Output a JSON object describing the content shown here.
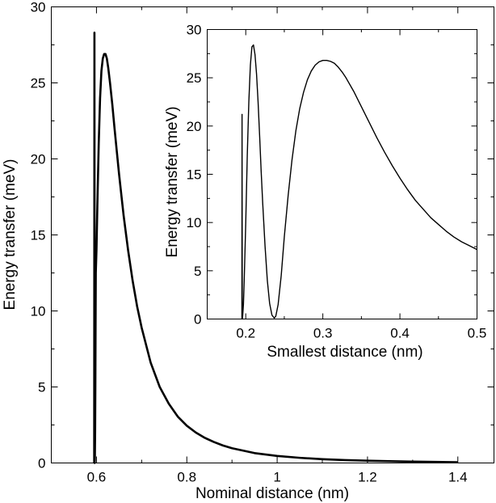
{
  "chart_data": [
    {
      "type": "line",
      "panel": "main",
      "xlabel": "Nominal distance (nm)",
      "ylabel": "Energy transfer (meV)",
      "xlim": [
        0.5,
        1.48
      ],
      "ylim": [
        0,
        30
      ],
      "xticks": [
        0.6,
        0.8,
        1,
        1.2,
        1.4
      ],
      "xtick_labels": [
        "0.6",
        "0.8",
        "1",
        "1.2",
        "1.4"
      ],
      "yticks": [
        0,
        5,
        10,
        15,
        20,
        25,
        30
      ],
      "ytick_labels": [
        "0",
        "5",
        "10",
        "15",
        "20",
        "25",
        "30"
      ],
      "grid": false,
      "legend": "none",
      "line_color": "#000000",
      "series": [
        {
          "x": [
            0.595,
            0.5955,
            0.596,
            0.5965,
            0.597,
            0.5975,
            0.598,
            0.5985,
            0.6,
            0.602,
            0.605,
            0.608,
            0.611,
            0.614,
            0.617,
            0.62,
            0.623,
            0.626,
            0.63,
            0.635,
            0.64,
            0.645,
            0.65,
            0.66,
            0.67,
            0.68,
            0.69,
            0.7,
            0.72,
            0.74,
            0.76,
            0.78,
            0.8,
            0.82,
            0.84,
            0.86,
            0.88,
            0.9,
            0.95,
            1.0,
            1.05,
            1.1,
            1.15,
            1.2,
            1.25,
            1.3,
            1.35,
            1.4
          ],
          "y": [
            0,
            28.3,
            0,
            0.5,
            2,
            5,
            9,
            12.5,
            14,
            17,
            21,
            24,
            25.8,
            26.6,
            26.9,
            26.9,
            26.6,
            26.0,
            25.0,
            23.6,
            22.0,
            20.5,
            19.0,
            16.3,
            14.0,
            12.0,
            10.3,
            8.9,
            6.6,
            5.0,
            3.9,
            3.05,
            2.45,
            2.0,
            1.65,
            1.38,
            1.15,
            0.97,
            0.65,
            0.46,
            0.34,
            0.25,
            0.19,
            0.15,
            0.12,
            0.09,
            0.07,
            0.05
          ]
        }
      ]
    },
    {
      "type": "line",
      "panel": "inset",
      "xlabel": "Smallest distance (nm)",
      "ylabel": "Energy transfer (meV)",
      "xlim": [
        0.15,
        0.5
      ],
      "ylim": [
        0,
        30
      ],
      "xticks": [
        0.2,
        0.3,
        0.4,
        0.5
      ],
      "xtick_labels": [
        "0.2",
        "0.3",
        "0.4",
        "0.5"
      ],
      "yticks": [
        0,
        5,
        10,
        15,
        20,
        25,
        30
      ],
      "ytick_labels": [
        "0",
        "5",
        "10",
        "15",
        "20",
        "25",
        "30"
      ],
      "grid": false,
      "legend": "none",
      "line_color": "#000000",
      "series": [
        {
          "x": [
            0.195,
            0.1952,
            0.1955,
            0.196,
            0.197,
            0.198,
            0.2,
            0.202,
            0.204,
            0.206,
            0.208,
            0.21,
            0.212,
            0.214,
            0.216,
            0.218,
            0.22,
            0.222,
            0.225,
            0.228,
            0.231,
            0.234,
            0.237,
            0.239,
            0.242,
            0.246,
            0.25,
            0.255,
            0.26,
            0.265,
            0.27,
            0.275,
            0.28,
            0.285,
            0.29,
            0.295,
            0.3,
            0.305,
            0.31,
            0.315,
            0.32,
            0.325,
            0.33,
            0.34,
            0.35,
            0.36,
            0.37,
            0.38,
            0.39,
            0.4,
            0.41,
            0.42,
            0.43,
            0.44,
            0.45,
            0.46,
            0.47,
            0.48,
            0.49,
            0.5
          ],
          "y": [
            0,
            21.2,
            0,
            0.3,
            1.5,
            4,
            10,
            17,
            22.5,
            26.3,
            28.2,
            28.4,
            27.4,
            25.4,
            22.5,
            19.0,
            15.3,
            12.0,
            7.6,
            4.0,
            1.6,
            0.4,
            0.1,
            0.3,
            1.5,
            4.5,
            8.5,
            12.8,
            16.5,
            19.5,
            21.8,
            23.5,
            24.8,
            25.7,
            26.3,
            26.65,
            26.8,
            26.8,
            26.7,
            26.5,
            26.1,
            25.6,
            25.0,
            23.6,
            22.0,
            20.4,
            18.8,
            17.3,
            15.9,
            14.6,
            13.4,
            12.3,
            11.4,
            10.5,
            9.8,
            9.1,
            8.5,
            8.0,
            7.6,
            7.2
          ]
        }
      ]
    }
  ]
}
